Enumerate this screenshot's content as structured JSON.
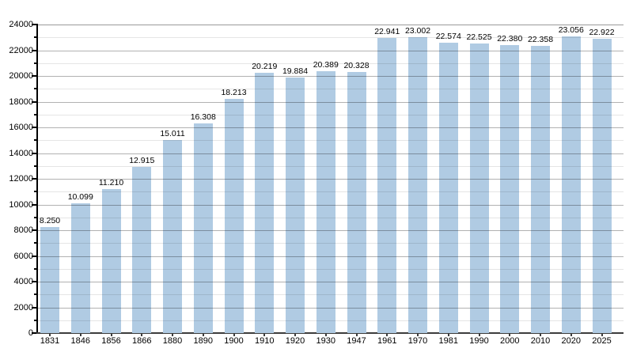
{
  "chart_data": {
    "type": "bar",
    "title": "",
    "xlabel": "",
    "ylabel": "",
    "categories": [
      "1831",
      "1846",
      "1856",
      "1866",
      "1880",
      "1890",
      "1900",
      "1910",
      "1920",
      "1930",
      "1947",
      "1961",
      "1970",
      "1981",
      "1990",
      "2000",
      "2010",
      "2020",
      "2025"
    ],
    "values": [
      8250,
      10099,
      11210,
      12915,
      15011,
      16308,
      18213,
      20219,
      19884,
      20389,
      20328,
      22941,
      23002,
      22574,
      22525,
      22380,
      22358,
      23056,
      22922
    ],
    "value_labels": [
      "8.250",
      "10.099",
      "11.210",
      "12.915",
      "15.011",
      "16.308",
      "18.213",
      "20.219",
      "19.884",
      "20.389",
      "20.328",
      "22.941",
      "23.002",
      "22.574",
      "22.525",
      "22.380",
      "22.358",
      "23.056",
      "22.922"
    ],
    "ylim": [
      0,
      24000
    ],
    "ytick_step": 2000,
    "minor_tick_step": 1000,
    "ytick_labels": [
      "0",
      "2000",
      "4000",
      "6000",
      "8000",
      "10000",
      "12000",
      "14000",
      "16000",
      "18000",
      "20000",
      "22000",
      "24000"
    ],
    "grid": "horizontal-major-and-minor",
    "legend": "none",
    "colors": {
      "bar_fill": "#B0CBE3",
      "major_grid": "rgba(0,0,0,0.30)",
      "minor_grid": "rgba(0,0,0,0.10)",
      "top_border": "rgba(0,0,0,0.40)",
      "y_axis": "#000000",
      "x_axis": "#3c3c3c",
      "text": "#000000",
      "background": "#FFFFFF"
    }
  }
}
